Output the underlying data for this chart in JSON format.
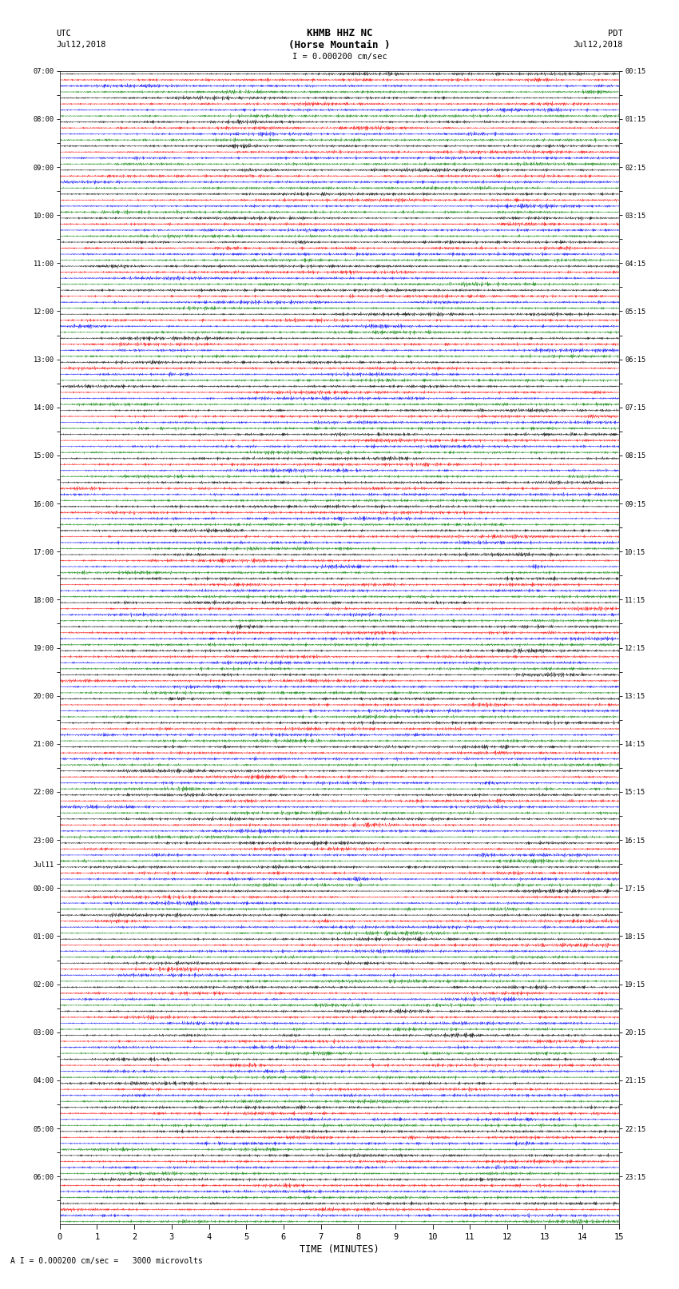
{
  "title_line1": "KHMB HHZ NC",
  "title_line2": "(Horse Mountain )",
  "scale_label": "I = 0.000200 cm/sec",
  "footer_label": "A I = 0.000200 cm/sec =   3000 microvolts",
  "left_header": "UTC",
  "left_date": "Jul12,2018",
  "right_header": "PDT",
  "right_date": "Jul12,2018",
  "xlabel": "TIME (MINUTES)",
  "left_times": [
    "07:00",
    "",
    "08:00",
    "",
    "09:00",
    "",
    "10:00",
    "",
    "11:00",
    "",
    "12:00",
    "",
    "13:00",
    "",
    "14:00",
    "",
    "15:00",
    "",
    "16:00",
    "",
    "17:00",
    "",
    "18:00",
    "",
    "19:00",
    "",
    "20:00",
    "",
    "21:00",
    "",
    "22:00",
    "",
    "23:00",
    "Jul11",
    "00:00",
    "",
    "01:00",
    "",
    "02:00",
    "",
    "03:00",
    "",
    "04:00",
    "",
    "05:00",
    "",
    "06:00",
    ""
  ],
  "right_times": [
    "00:15",
    "",
    "01:15",
    "",
    "02:15",
    "",
    "03:15",
    "",
    "04:15",
    "",
    "05:15",
    "",
    "06:15",
    "",
    "07:15",
    "",
    "08:15",
    "",
    "09:15",
    "",
    "10:15",
    "",
    "11:15",
    "",
    "12:15",
    "",
    "13:15",
    "",
    "14:15",
    "",
    "15:15",
    "",
    "16:15",
    "",
    "17:15",
    "",
    "18:15",
    "",
    "19:15",
    "",
    "20:15",
    "",
    "21:15",
    "",
    "22:15",
    "",
    "23:15"
  ],
  "n_rows": 48,
  "n_sub": 4,
  "row_colors": [
    "black",
    "red",
    "blue",
    "green"
  ],
  "bg_color": "white",
  "fig_width": 8.5,
  "fig_height": 16.13,
  "dpi": 100,
  "xmin": 0,
  "xmax": 15
}
